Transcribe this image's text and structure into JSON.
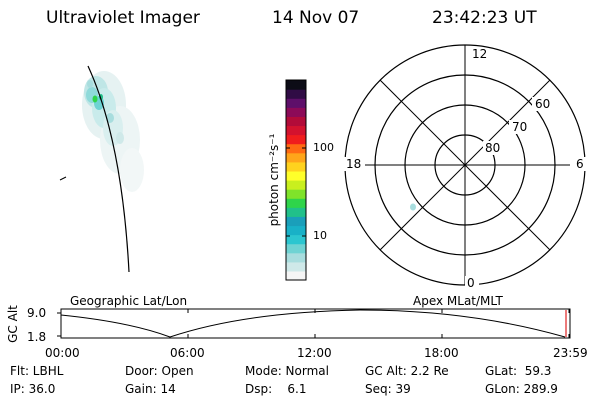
{
  "header": {
    "instrument": "Ultraviolet Imager",
    "date": "14 Nov 07",
    "time": "23:42:23 UT"
  },
  "colorbar": {
    "label": "photon cm⁻²s⁻¹",
    "ticks": [
      "100",
      "10"
    ],
    "colors": [
      "#f5f5f5",
      "#cfe9e9",
      "#a8ddde",
      "#6fd3d3",
      "#2cc6d0",
      "#19b1c7",
      "#1a9fba",
      "#21c08a",
      "#2fd44a",
      "#7fe32a",
      "#c9ef1e",
      "#ffff2a",
      "#ffd21e",
      "#ffa51a",
      "#ff6a13",
      "#f01d1d",
      "#d3122e",
      "#b20b39",
      "#8c0a58",
      "#5e0f6a",
      "#300c45",
      "#0c0c16"
    ]
  },
  "polar": {
    "hour_labels": {
      "top": "12",
      "right": "6",
      "left": "18",
      "bottom": "0"
    },
    "lat_labels": [
      "60",
      "70",
      "80"
    ]
  },
  "timeline": {
    "left_title": "Geographic Lat/Lon",
    "right_title": "Apex MLat/MLT",
    "axis_label": "GC Alt",
    "y_ticks": [
      "9.0",
      "1.8"
    ],
    "x_ticks": [
      "00:00",
      "06:00",
      "12:00",
      "18:00",
      "23:59"
    ]
  },
  "info": {
    "row1": [
      "Flt: LBHL",
      "Door: Open",
      "Mode: Normal",
      "GC Alt: 2.2 Re",
      "GLat:  59.3"
    ],
    "row2": [
      "IP: 36.0",
      "Gain: 14",
      "Dsp:    6.1",
      "Seq: 39",
      "GLon: 289.9"
    ]
  }
}
